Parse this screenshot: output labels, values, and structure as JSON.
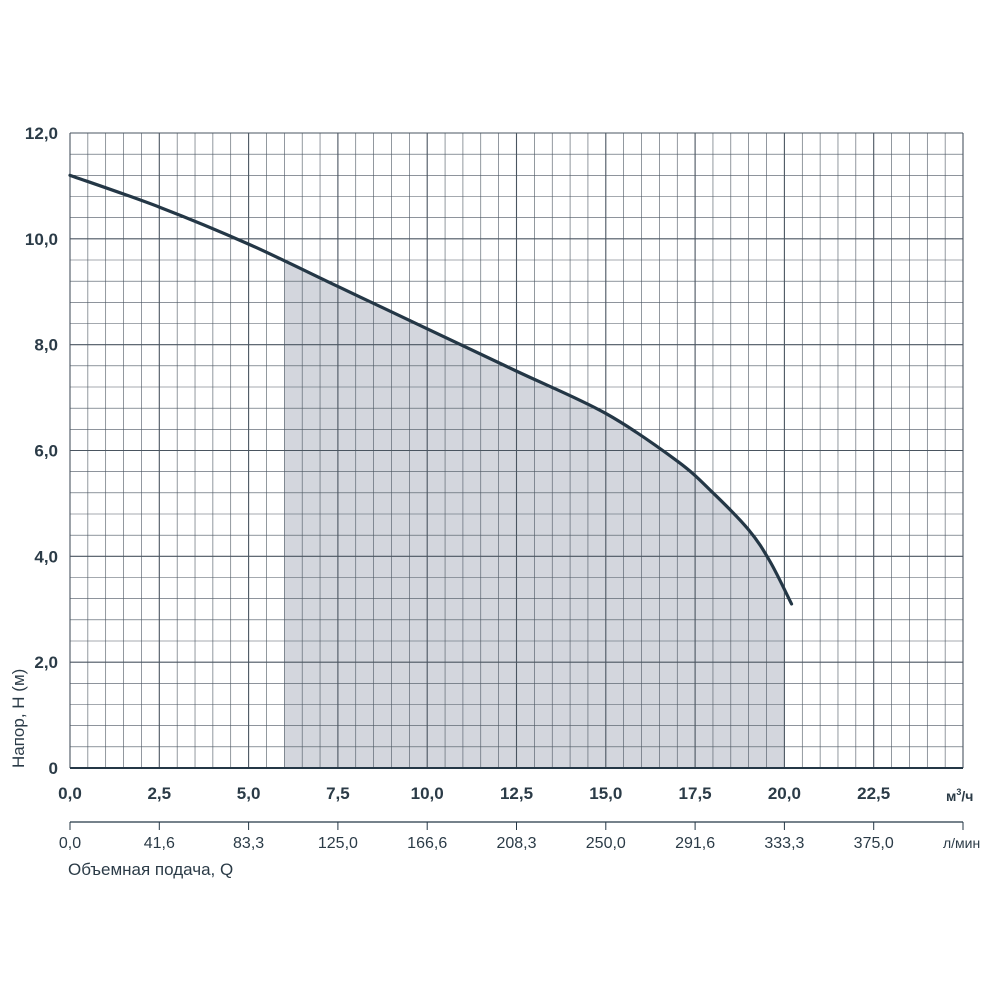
{
  "chart_data": {
    "type": "line",
    "title": "",
    "ylabel": "Напор, H (м)",
    "xlabel": "Объемная подача, Q",
    "x_unit_primary": "м³/ч",
    "x_unit_primary_base": "м",
    "x_unit_primary_sup": "3",
    "x_unit_primary_tail": "/ч",
    "x_unit_secondary": "л/мин",
    "xlim": [
      0,
      25
    ],
    "ylim": [
      0,
      12
    ],
    "grid": true,
    "y_ticks": [
      "0",
      "2,0",
      "4,0",
      "6,0",
      "8,0",
      "10,0",
      "12,0"
    ],
    "x_ticks": [
      "0,0",
      "2,5",
      "5,0",
      "7,5",
      "10,0",
      "12,5",
      "15,0",
      "17,5",
      "20,0",
      "22,5"
    ],
    "x_ticks_secondary": [
      "0,0",
      "41,6",
      "83,3",
      "125,0",
      "166,6",
      "208,3",
      "250,0",
      "291,6",
      "333,3",
      "375,0"
    ],
    "working_range": [
      6.0,
      20.0
    ],
    "series": [
      {
        "x": [
          0,
          2.5,
          5,
          7.5,
          10,
          12.5,
          15,
          17,
          18,
          19,
          19.6,
          20.2
        ],
        "y": [
          11.2,
          10.6,
          9.9,
          9.1,
          8.3,
          7.5,
          6.7,
          5.8,
          5.2,
          4.5,
          3.9,
          3.1
        ]
      }
    ],
    "colors": {
      "line": "#243746",
      "grid": "#4a5560",
      "band": "#d3d6dd",
      "text": "#2b3b47"
    }
  }
}
